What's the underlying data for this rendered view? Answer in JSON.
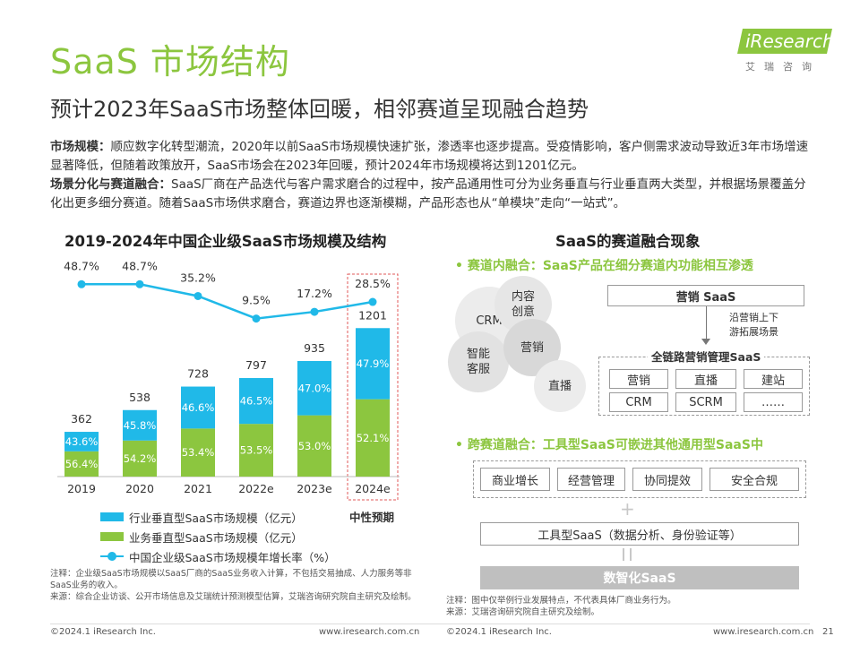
{
  "header": {
    "title": "SaaS 市场结构",
    "subtitle": "预计2023年SaaS市场整体回暖，相邻赛道呈现融合趋势",
    "logo_text": "iResearch",
    "logo_sub": "艾瑞咨询"
  },
  "intro": {
    "p1_label": "市场规模：",
    "p1_text": "顺应数字化转型潮流，2020年以前SaaS市场规模快速扩张，渗透率也逐步提高。受疫情影响，客户侧需求波动导致近3年市场增速显著降低，但随着政策放开，SaaS市场会在2023年回暖，预计2024年市场规模将达到1201亿元。",
    "p2_label": "场景分化与赛道融合：",
    "p2_text": "SaaS厂商在产品迭代与客户需求磨合的过程中，按产品通用性可分为业务垂直与行业垂直两大类型，并根据场景覆盖分化出更多细分赛道。随着SaaS市场供求磨合，赛道边界也逐渐模糊，产品形态也从“单模块”走向“一站式”。"
  },
  "chart_data": {
    "type": "bar",
    "title": "2019-2024年中国企业级SaaS市场规模及结构",
    "categories": [
      "2019",
      "2020",
      "2021",
      "2022e",
      "2023e",
      "2024e"
    ],
    "totals": [
      "362",
      "538",
      "728",
      "797",
      "935",
      "1201"
    ],
    "series": [
      {
        "name": "行业垂直型SaaS市场规模（亿元）",
        "shares": [
          "43.6%",
          "45.8%",
          "46.6%",
          "46.5%",
          "47.0%",
          "47.9%"
        ],
        "color": "#20b9e8"
      },
      {
        "name": "业务垂直型SaaS市场规模（亿元）",
        "shares": [
          "56.4%",
          "54.2%",
          "53.4%",
          "53.5%",
          "53.0%",
          "52.1%"
        ],
        "color": "#8cc63f"
      },
      {
        "name": "中国企业级SaaS市场规模年增长率（%）",
        "type": "line",
        "values": [
          "48.7%",
          "48.7%",
          "35.2%",
          "9.5%",
          "17.2%",
          "28.5%"
        ],
        "color": "#20b9e8"
      }
    ],
    "forecast_label": "中性预期",
    "ylim": [
      0,
      1300
    ]
  },
  "notes_left": {
    "line1": "注释：企业级SaaS市场规模以SaaS厂商的SaaS业务收入计算，不包括交易抽成、人力服务等非SaaS业务的收入。",
    "line2": "来源：综合企业访谈、公开市场信息及艾瑞统计预测模型估算，艾瑞咨询研究院自主研究及绘制。"
  },
  "right": {
    "title": "SaaS的赛道融合现象",
    "sec1": "• 赛道内融合：SaaS产品在细分赛道内功能相互渗透",
    "bubbles": [
      "CRM",
      "内容\n创意",
      "智能\n客服",
      "营销",
      "直播"
    ],
    "marketing_saas": "营销 SaaS",
    "annotation": "沿营销上下\n游拓展场景",
    "full_chain_title": "全链路营销管理SaaS",
    "full_chain_items": [
      "营销",
      "直播",
      "建站",
      "CRM",
      "SCRM",
      "……"
    ],
    "sec2": "• 跨赛道融合：工具型SaaS可嵌进其他通用型SaaS中",
    "general_items": [
      "商业增长",
      "经营管理",
      "协同提效",
      "安全合规"
    ],
    "tool_saas": "工具型SaaS（数据分析、身份验证等）",
    "digital_saas": "数智化SaaS"
  },
  "notes_right": {
    "line1": "注释：图中仅举例行业发展特点，不代表具体厂商业务行为。",
    "line2": "来源：艾瑞咨询研究院自主研究及绘制。"
  },
  "footer": {
    "copyright": "©2024.1 iResearch Inc.",
    "url": "www.iresearch.com.cn",
    "page": "21"
  }
}
